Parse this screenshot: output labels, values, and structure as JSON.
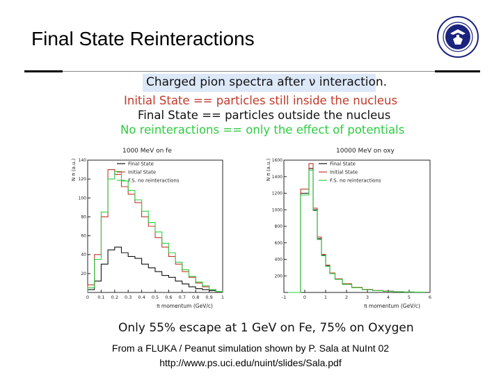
{
  "title": "Final State Reinteractions",
  "header": {
    "caption": "Charged pion spectra after ν interaction.",
    "legend_lines": [
      "Initial State == particles still inside the nucleus",
      "Final State == particles outside the nucleus",
      "No reinteractions == only the effect of potentials"
    ]
  },
  "colors": {
    "final": "#111111",
    "initial": "#c0392b",
    "nore": "#2ecc40"
  },
  "chart_data": [
    {
      "type": "line",
      "title": "1000 MeV on fe",
      "ylabel": "N π (a.u.)",
      "xlabel": "π momentum (GeV/c)",
      "xlim": [
        0,
        1.0
      ],
      "ylim": [
        0,
        140
      ],
      "x_ticks": [
        "0",
        "0.1",
        "0.2",
        "0.3",
        "0.4",
        "0.5",
        "0.6",
        "0.7",
        "0.8",
        "0.9",
        "1"
      ],
      "y_ticks": [
        "20",
        "40",
        "60",
        "80",
        "100",
        "120",
        "140"
      ],
      "legend": [
        "Final State",
        "Initial State",
        "F.S. no reinteractions"
      ],
      "x": [
        0.025,
        0.075,
        0.125,
        0.175,
        0.225,
        0.275,
        0.325,
        0.375,
        0.425,
        0.475,
        0.525,
        0.575,
        0.625,
        0.675,
        0.725,
        0.775,
        0.825,
        0.875,
        0.925,
        0.975
      ],
      "series": [
        {
          "name": "Final State",
          "values": [
            3,
            12,
            30,
            45,
            48,
            42,
            38,
            36,
            30,
            26,
            22,
            18,
            16,
            12,
            9,
            6,
            4,
            3,
            2,
            1
          ]
        },
        {
          "name": "Initial State",
          "values": [
            8,
            40,
            80,
            130,
            125,
            112,
            104,
            95,
            80,
            70,
            58,
            48,
            38,
            30,
            22,
            16,
            10,
            6,
            3,
            1
          ]
        },
        {
          "name": "F.S. no reinteractions",
          "values": [
            5,
            35,
            85,
            120,
            128,
            118,
            108,
            98,
            86,
            74,
            64,
            52,
            42,
            32,
            24,
            17,
            11,
            7,
            3,
            1
          ]
        }
      ]
    },
    {
      "type": "line",
      "title": "10000 MeV on oxy",
      "ylabel": "N π (a.u.)",
      "xlabel": "π momentum (GeV/c)",
      "xlim": [
        -1,
        6
      ],
      "ylim": [
        0,
        1600
      ],
      "x_ticks": [
        "-1",
        "0",
        "1",
        "2",
        "3",
        "4",
        "5",
        "6"
      ],
      "y_ticks": [
        "200",
        "400",
        "600",
        "800",
        "1000",
        "1200",
        "1400",
        "1600"
      ],
      "legend": [
        "Final State",
        "Initial State",
        "F.S. no reinteractions"
      ],
      "x": [
        -0.5,
        0.1,
        0.3,
        0.5,
        0.7,
        0.9,
        1.1,
        1.3,
        1.6,
        2.0,
        2.5,
        3.0,
        3.5,
        4.0,
        4.5,
        5.0,
        5.5
      ],
      "series": [
        {
          "name": "Final State",
          "values": [
            0,
            1200,
            1500,
            1000,
            650,
            450,
            320,
            230,
            160,
            100,
            60,
            35,
            22,
            14,
            8,
            5,
            3
          ]
        },
        {
          "name": "Initial State",
          "values": [
            0,
            1250,
            1560,
            1020,
            670,
            460,
            330,
            235,
            165,
            105,
            62,
            37,
            23,
            15,
            9,
            5,
            3
          ]
        },
        {
          "name": "F.S. no reinteractions",
          "values": [
            0,
            1180,
            1480,
            990,
            640,
            445,
            315,
            228,
            158,
            98,
            58,
            34,
            21,
            13,
            8,
            5,
            3
          ]
        }
      ]
    }
  ],
  "bottom_note": "Only 55% escape at 1 GeV on Fe, 75% on Oxygen",
  "footer": {
    "line1": "From a FLUKA / Peanut simulation shown by P. Sala at NuInt 02",
    "line2": "http://www.ps.uci.edu/nuint/slides/Sala.pdf"
  }
}
